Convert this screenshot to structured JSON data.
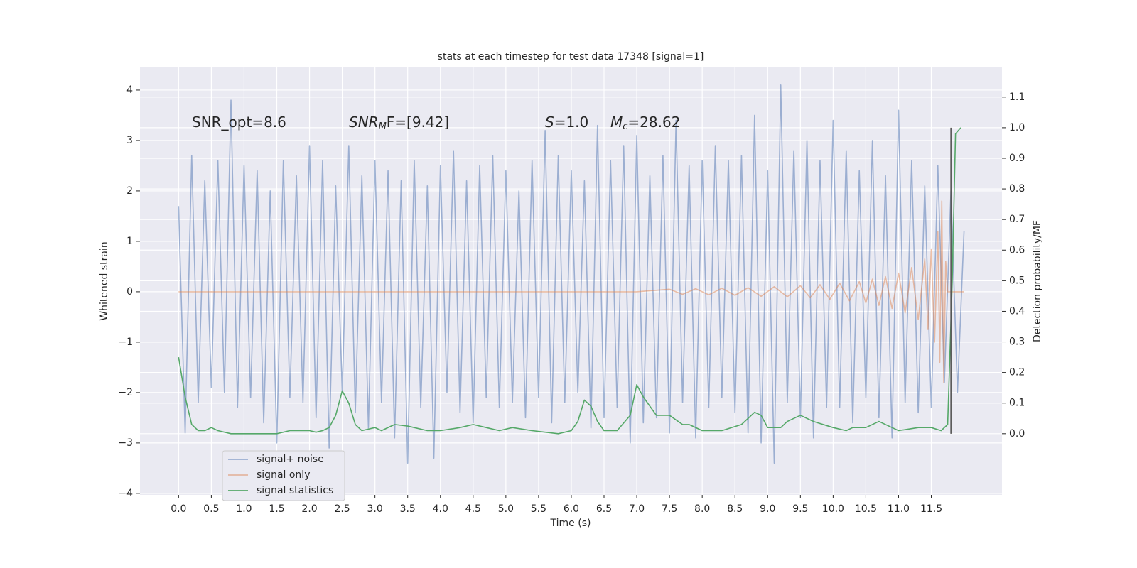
{
  "chart_data": {
    "type": "line",
    "title": "stats at each timestep for test data 17348 [signal=1]",
    "xlabel": "Time (s)",
    "ylabel": "Whitened strain",
    "y2label": "Detection probability/MF",
    "xlim": [
      -0.59,
      12.58
    ],
    "ylim": [
      -4.03,
      4.45
    ],
    "y2lim": [
      -0.2,
      1.197
    ],
    "xticks": [
      {
        "value": 0,
        "label": "0.0"
      },
      0.5,
      {
        "value": 1,
        "label": "1.0"
      },
      1.5,
      {
        "value": 2,
        "label": "2.0"
      },
      2.5,
      {
        "value": 3,
        "label": "3.0"
      },
      3.5,
      {
        "value": 4,
        "label": "4.0"
      },
      4.5,
      {
        "value": 5,
        "label": "5.0"
      },
      5.5,
      {
        "value": 6,
        "label": "6.0"
      },
      6.5,
      {
        "value": 7,
        "label": "7.0"
      },
      7.5,
      {
        "value": 8,
        "label": "8.0"
      },
      8.5,
      {
        "value": 9,
        "label": "9.0"
      },
      9.5,
      {
        "value": 10,
        "label": "10.0"
      },
      10.5,
      {
        "value": 11,
        "label": "11.0"
      },
      11.5
    ],
    "yticks": [
      {
        "value": -4,
        "label": "−4"
      },
      {
        "value": -3,
        "label": "−3"
      },
      {
        "value": -2,
        "label": "−2"
      },
      {
        "value": -1,
        "label": "−1"
      },
      0,
      1,
      2,
      3,
      4
    ],
    "y2ticks": [
      {
        "value": 0,
        "label": "0.0"
      },
      0.1,
      0.2,
      0.3,
      0.4,
      0.5,
      0.6,
      0.7,
      0.8,
      0.9,
      {
        "value": 1,
        "label": "1.0"
      },
      1.1
    ],
    "grid": true,
    "legend": "lower left",
    "annotations": [
      {
        "text": "SNR_opt=8.6"
      },
      {
        "italic": "SNR",
        "sub": "M",
        "text": "F=[9.42]"
      },
      {
        "italic": "S",
        "text": "=1.0"
      },
      {
        "italic": "M",
        "sub": "c",
        "text": "=28.62"
      }
    ],
    "vline": {
      "x": 11.8,
      "ymin": 0,
      "ymax": 1.0,
      "axis": "y2",
      "color": "#555555"
    },
    "series": [
      {
        "name": "signal+ noise",
        "color": "#4c72b0",
        "alpha": 0.5,
        "x": [
          0.0,
          0.1,
          0.2,
          0.3,
          0.4,
          0.5,
          0.6,
          0.7,
          0.8,
          0.9,
          1.0,
          1.1,
          1.2,
          1.3,
          1.4,
          1.5,
          1.6,
          1.7,
          1.8,
          1.9,
          2.0,
          2.1,
          2.2,
          2.3,
          2.4,
          2.5,
          2.6,
          2.7,
          2.8,
          2.9,
          3.0,
          3.1,
          3.2,
          3.3,
          3.4,
          3.5,
          3.6,
          3.7,
          3.8,
          3.9,
          4.0,
          4.1,
          4.2,
          4.3,
          4.4,
          4.5,
          4.6,
          4.7,
          4.8,
          4.9,
          5.0,
          5.1,
          5.2,
          5.3,
          5.4,
          5.5,
          5.6,
          5.7,
          5.8,
          5.9,
          6.0,
          6.1,
          6.2,
          6.3,
          6.4,
          6.5,
          6.6,
          6.7,
          6.8,
          6.9,
          7.0,
          7.1,
          7.2,
          7.3,
          7.4,
          7.5,
          7.6,
          7.7,
          7.8,
          7.9,
          8.0,
          8.1,
          8.2,
          8.3,
          8.4,
          8.5,
          8.6,
          8.7,
          8.8,
          8.9,
          9.0,
          9.1,
          9.2,
          9.3,
          9.4,
          9.5,
          9.6,
          9.7,
          9.8,
          9.9,
          10.0,
          10.1,
          10.2,
          10.3,
          10.4,
          10.5,
          10.6,
          10.7,
          10.8,
          10.9,
          11.0,
          11.1,
          11.2,
          11.3,
          11.4,
          11.5,
          11.6,
          11.7,
          11.8,
          11.9,
          12.0
        ],
        "values": [
          1.7,
          -2.8,
          2.7,
          -2.2,
          2.2,
          -1.9,
          2.6,
          -2.0,
          3.8,
          -2.3,
          2.5,
          -2.1,
          2.4,
          -2.6,
          2.0,
          -3.0,
          2.6,
          -2.1,
          2.3,
          -2.2,
          2.9,
          -2.5,
          2.6,
          -3.1,
          2.1,
          -2.0,
          2.9,
          -2.4,
          2.3,
          -2.7,
          2.6,
          -2.2,
          2.4,
          -2.9,
          2.2,
          -3.4,
          2.6,
          -2.3,
          2.1,
          -3.3,
          2.5,
          -2.0,
          2.8,
          -2.4,
          2.2,
          -2.6,
          2.5,
          -2.1,
          2.7,
          -2.3,
          2.4,
          -2.2,
          2.0,
          -2.5,
          2.6,
          -2.1,
          3.2,
          -2.6,
          2.7,
          -2.2,
          2.4,
          -2.0,
          2.2,
          -2.7,
          3.3,
          -2.5,
          2.6,
          -2.3,
          2.9,
          -3.0,
          3.1,
          -2.6,
          2.3,
          -2.5,
          2.7,
          -2.8,
          3.4,
          -2.2,
          2.5,
          -2.9,
          2.6,
          -2.3,
          2.9,
          -2.1,
          2.6,
          -2.4,
          2.7,
          -2.8,
          3.5,
          -3.0,
          2.4,
          -3.4,
          4.1,
          -2.2,
          2.8,
          -2.5,
          3.0,
          -2.9,
          2.6,
          -2.3,
          3.4,
          -2.3,
          2.8,
          -2.6,
          2.4,
          -2.1,
          3.0,
          -2.5,
          2.3,
          -2.9,
          3.6,
          -2.2,
          2.6,
          -2.4,
          2.1,
          -2.3,
          2.5,
          -1.8,
          2.0,
          -2.0,
          1.2
        ]
      },
      {
        "name": "signal only",
        "color": "#dd8452",
        "alpha": 0.5,
        "x": [
          0,
          7.0,
          7.5,
          7.7,
          7.9,
          8.1,
          8.3,
          8.5,
          8.7,
          8.9,
          9.1,
          9.3,
          9.5,
          9.65,
          9.8,
          9.95,
          10.1,
          10.25,
          10.4,
          10.5,
          10.6,
          10.7,
          10.8,
          10.9,
          11.0,
          11.1,
          11.2,
          11.3,
          11.4,
          11.45,
          11.5,
          11.55,
          11.6,
          11.63,
          11.66,
          11.69,
          11.72,
          11.75,
          12.0
        ],
        "values": [
          0,
          0,
          0.05,
          -0.05,
          0.06,
          -0.06,
          0.07,
          -0.07,
          0.08,
          -0.09,
          0.1,
          -0.1,
          0.12,
          -0.12,
          0.14,
          -0.15,
          0.17,
          -0.18,
          0.2,
          -0.22,
          0.25,
          -0.27,
          0.3,
          -0.33,
          0.37,
          -0.42,
          0.48,
          -0.55,
          0.65,
          -0.75,
          0.85,
          -1.0,
          1.2,
          -1.4,
          1.8,
          -1.8,
          0.6,
          0,
          0
        ]
      },
      {
        "name": "signal statistics",
        "color": "#55a868",
        "alpha": 1,
        "axis": "y2",
        "x": [
          0,
          0.1,
          0.2,
          0.3,
          0.4,
          0.5,
          0.6,
          0.8,
          1.0,
          1.2,
          1.5,
          1.7,
          2.0,
          2.1,
          2.2,
          2.3,
          2.4,
          2.5,
          2.6,
          2.7,
          2.8,
          3.0,
          3.1,
          3.3,
          3.5,
          3.8,
          4.0,
          4.3,
          4.5,
          4.7,
          4.9,
          5.1,
          5.4,
          5.8,
          6.0,
          6.1,
          6.2,
          6.3,
          6.4,
          6.5,
          6.7,
          6.9,
          7.0,
          7.1,
          7.3,
          7.5,
          7.7,
          7.8,
          8.0,
          8.3,
          8.6,
          8.8,
          8.9,
          9.0,
          9.2,
          9.3,
          9.5,
          9.7,
          10.0,
          10.2,
          10.3,
          10.5,
          10.7,
          10.9,
          11.0,
          11.3,
          11.5,
          11.65,
          11.75,
          11.82,
          11.87,
          11.95
        ],
        "values": [
          0.25,
          0.12,
          0.03,
          0.01,
          0.01,
          0.02,
          0.01,
          0.0,
          0.0,
          0.0,
          0.0,
          0.01,
          0.01,
          0.005,
          0.01,
          0.02,
          0.06,
          0.14,
          0.1,
          0.03,
          0.01,
          0.02,
          0.01,
          0.03,
          0.025,
          0.01,
          0.01,
          0.02,
          0.03,
          0.02,
          0.01,
          0.02,
          0.01,
          0.0,
          0.01,
          0.04,
          0.11,
          0.09,
          0.04,
          0.01,
          0.01,
          0.06,
          0.16,
          0.12,
          0.06,
          0.06,
          0.03,
          0.03,
          0.01,
          0.01,
          0.03,
          0.07,
          0.06,
          0.02,
          0.02,
          0.04,
          0.06,
          0.04,
          0.02,
          0.01,
          0.02,
          0.02,
          0.04,
          0.02,
          0.01,
          0.02,
          0.02,
          0.01,
          0.03,
          0.5,
          0.98,
          1.0
        ]
      }
    ]
  }
}
